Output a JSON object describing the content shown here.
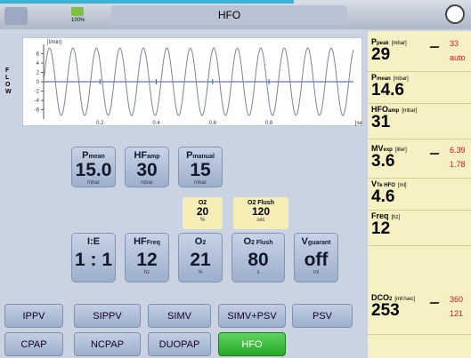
{
  "header": {
    "battery": "100%",
    "title": "HFO"
  },
  "graph": {
    "label": "FLOW",
    "y_unit": "[l/min]",
    "x_unit": "[sec]",
    "xlim": [
      0,
      1.1
    ],
    "xticks": [
      0.2,
      0.4,
      0.6,
      0.8
    ],
    "ylim": [
      -8,
      8
    ],
    "yticks": [
      6,
      4,
      2,
      0,
      -2,
      -4,
      -6
    ]
  },
  "settings": [
    {
      "label": "P",
      "sub": "mean",
      "value": "15.0",
      "unit": "mbar"
    },
    {
      "label": "HF",
      "sub": "amp",
      "value": "30",
      "unit": "mbar"
    },
    {
      "label": "P",
      "sub": "manual",
      "value": "15",
      "unit": "mbar"
    },
    {
      "label": "I:E",
      "sub": "",
      "value": "1 : 1",
      "unit": ""
    },
    {
      "label": "HF",
      "sub": "Freq",
      "value": "12",
      "unit": "hz"
    },
    {
      "label": "O",
      "sub": "2",
      "value": "21",
      "unit": "%"
    },
    {
      "label": "O",
      "sub": "2 Flush",
      "value": "80",
      "unit": "s"
    },
    {
      "label": "V",
      "sub": "guarant",
      "value": "off",
      "unit": "ml"
    }
  ],
  "presets": [
    {
      "label": "O",
      "sub": "2",
      "value": "20",
      "unit": "%"
    },
    {
      "label": "O",
      "sub": "2 Flush",
      "value": "120",
      "unit": "sec"
    }
  ],
  "modes": [
    "IPPV",
    "SIPPV",
    "SIMV",
    "SIMV+PSV",
    "PSV",
    "CPAP",
    "NCPAP",
    "DUOPAP",
    "HFO"
  ],
  "active_mode": "HFO",
  "measurements": [
    {
      "label": "P",
      "sub": "peak",
      "unit": "[mbar]",
      "value": "29",
      "extra": [
        "33",
        "auto"
      ]
    },
    {
      "label": "P",
      "sub": "mean",
      "unit": "[mbar]",
      "value": "14.6",
      "extra": []
    },
    {
      "label": "HFO",
      "sub": "amp",
      "unit": "[mbar]",
      "value": "31",
      "extra": []
    },
    {
      "label": "MV",
      "sub": "exp",
      "unit": "[liter]",
      "value": "3.6",
      "extra": [
        "6.39",
        "1.78"
      ]
    },
    {
      "label": "V",
      "sub": "Te HFO",
      "unit": "[ml]",
      "value": "4.6",
      "extra": []
    },
    {
      "label": "Freq",
      "sub": "",
      "unit": "[hz]",
      "value": "12",
      "extra": []
    },
    {
      "label": "DCO",
      "sub": "2",
      "unit": "[ml²/sec]",
      "value": "253",
      "extra": [
        "360",
        "121"
      ]
    }
  ]
}
